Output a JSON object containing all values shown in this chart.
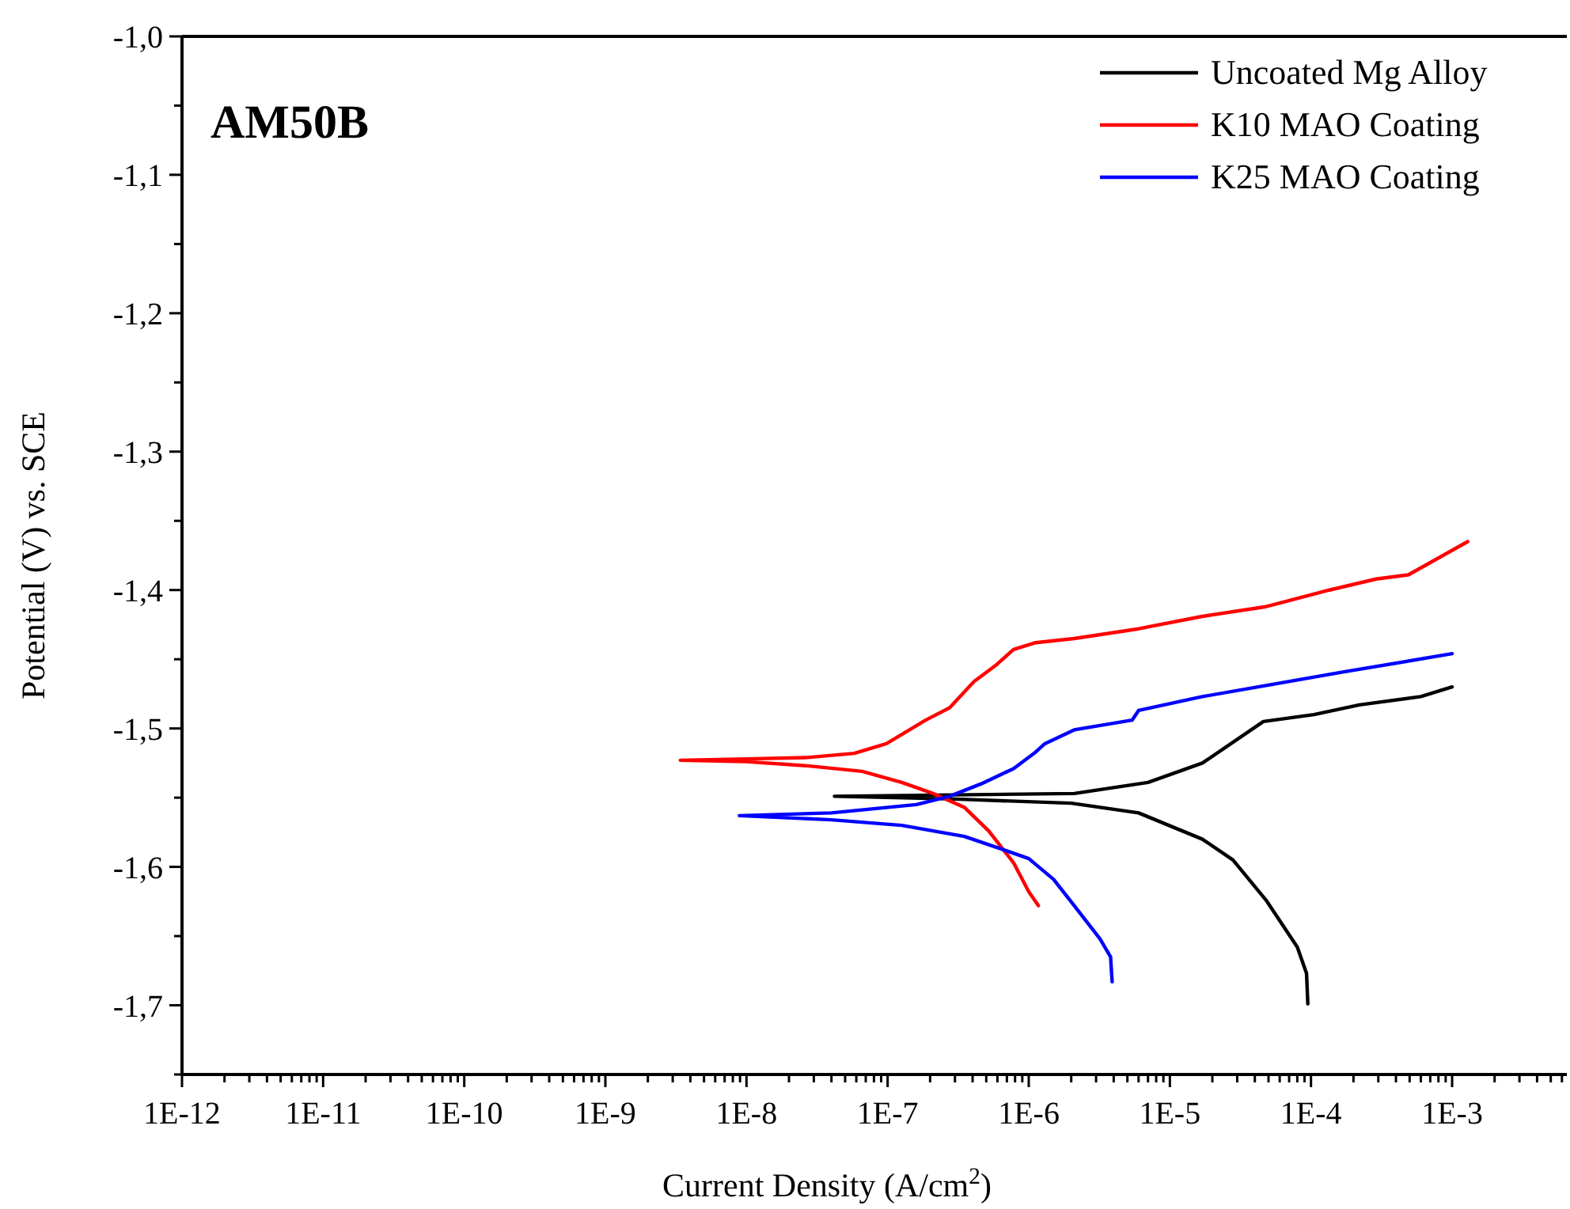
{
  "chart_data": {
    "type": "line",
    "title": "AM50B",
    "xlabel": "Current Density (A/cm$^{2}$)",
    "ylabel": "Potential (V) vs. SCE",
    "log": "x",
    "legend": "top right",
    "grid": false,
    "line_style": "solid",
    "xlim": [
      1e-12,
      0.0065
    ],
    "ylim": [
      -1.75,
      -1.0
    ],
    "xticks": [
      {
        "value": 1e-12,
        "label": "1E-12"
      },
      {
        "value": 2e-12,
        "label": null
      },
      {
        "value": 3e-12,
        "label": null
      },
      {
        "value": 4e-12,
        "label": null
      },
      {
        "value": 5e-12,
        "label": null
      },
      {
        "value": 6e-12,
        "label": null
      },
      {
        "value": 7e-12,
        "label": null
      },
      {
        "value": 8e-12,
        "label": null
      },
      {
        "value": 9e-12,
        "label": null
      },
      {
        "value": 1e-11,
        "label": "1E-11"
      },
      {
        "value": 2e-11,
        "label": null
      },
      {
        "value": 3e-11,
        "label": null
      },
      {
        "value": 4e-11,
        "label": null
      },
      {
        "value": 5e-11,
        "label": null
      },
      {
        "value": 6e-11,
        "label": null
      },
      {
        "value": 7e-11,
        "label": null
      },
      {
        "value": 8e-11,
        "label": null
      },
      {
        "value": 9e-11,
        "label": null
      },
      {
        "value": 1e-10,
        "label": "1E-10"
      },
      {
        "value": 2e-10,
        "label": null
      },
      {
        "value": 3e-10,
        "label": null
      },
      {
        "value": 4e-10,
        "label": null
      },
      {
        "value": 5e-10,
        "label": null
      },
      {
        "value": 6e-10,
        "label": null
      },
      {
        "value": 7e-10,
        "label": null
      },
      {
        "value": 8e-10,
        "label": null
      },
      {
        "value": 9e-10,
        "label": null
      },
      {
        "value": 1e-09,
        "label": "1E-9"
      },
      {
        "value": 2e-09,
        "label": null
      },
      {
        "value": 3e-09,
        "label": null
      },
      {
        "value": 4e-09,
        "label": null
      },
      {
        "value": 5e-09,
        "label": null
      },
      {
        "value": 6e-09,
        "label": null
      },
      {
        "value": 7e-09,
        "label": null
      },
      {
        "value": 8e-09,
        "label": null
      },
      {
        "value": 9e-09,
        "label": null
      },
      {
        "value": 1e-08,
        "label": "1E-8"
      },
      {
        "value": 2e-08,
        "label": null
      },
      {
        "value": 3e-08,
        "label": null
      },
      {
        "value": 4e-08,
        "label": null
      },
      {
        "value": 5e-08,
        "label": null
      },
      {
        "value": 6e-08,
        "label": null
      },
      {
        "value": 7e-08,
        "label": null
      },
      {
        "value": 8e-08,
        "label": null
      },
      {
        "value": 9e-08,
        "label": null
      },
      {
        "value": 1e-07,
        "label": "1E-7"
      },
      {
        "value": 2e-07,
        "label": null
      },
      {
        "value": 3e-07,
        "label": null
      },
      {
        "value": 4e-07,
        "label": null
      },
      {
        "value": 5e-07,
        "label": null
      },
      {
        "value": 6e-07,
        "label": null
      },
      {
        "value": 7e-07,
        "label": null
      },
      {
        "value": 8e-07,
        "label": null
      },
      {
        "value": 9e-07,
        "label": null
      },
      {
        "value": 1e-06,
        "label": "1E-6"
      },
      {
        "value": 2e-06,
        "label": null
      },
      {
        "value": 3e-06,
        "label": null
      },
      {
        "value": 4e-06,
        "label": null
      },
      {
        "value": 5e-06,
        "label": null
      },
      {
        "value": 6e-06,
        "label": null
      },
      {
        "value": 7e-06,
        "label": null
      },
      {
        "value": 8e-06,
        "label": null
      },
      {
        "value": 9e-06,
        "label": null
      },
      {
        "value": 1e-05,
        "label": "1E-5"
      },
      {
        "value": 2e-05,
        "label": null
      },
      {
        "value": 3e-05,
        "label": null
      },
      {
        "value": 4e-05,
        "label": null
      },
      {
        "value": 5e-05,
        "label": null
      },
      {
        "value": 6e-05,
        "label": null
      },
      {
        "value": 7e-05,
        "label": null
      },
      {
        "value": 8e-05,
        "label": null
      },
      {
        "value": 9e-05,
        "label": null
      },
      {
        "value": 0.0001,
        "label": "1E-4"
      },
      {
        "value": 0.0002,
        "label": null
      },
      {
        "value": 0.0003,
        "label": null
      },
      {
        "value": 0.0004,
        "label": null
      },
      {
        "value": 0.0005,
        "label": null
      },
      {
        "value": 0.0006,
        "label": null
      },
      {
        "value": 0.0007,
        "label": null
      },
      {
        "value": 0.0008,
        "label": null
      },
      {
        "value": 0.0009,
        "label": null
      },
      {
        "value": 0.001,
        "label": "1E-3"
      },
      {
        "value": 0.002,
        "label": null
      },
      {
        "value": 0.003,
        "label": null
      },
      {
        "value": 0.004,
        "label": null
      },
      {
        "value": 0.005,
        "label": null
      },
      {
        "value": 0.006,
        "label": null
      }
    ],
    "yticks": [
      {
        "value": -1.0,
        "label": "-1,0"
      },
      {
        "value": -1.05,
        "label": null
      },
      {
        "value": -1.1,
        "label": "-1,1"
      },
      {
        "value": -1.15,
        "label": null
      },
      {
        "value": -1.2,
        "label": "-1,2"
      },
      {
        "value": -1.25,
        "label": null
      },
      {
        "value": -1.3,
        "label": "-1,3"
      },
      {
        "value": -1.35,
        "label": null
      },
      {
        "value": -1.4,
        "label": "-1,4"
      },
      {
        "value": -1.45,
        "label": null
      },
      {
        "value": -1.5,
        "label": "-1,5"
      },
      {
        "value": -1.55,
        "label": null
      },
      {
        "value": -1.6,
        "label": "-1,6"
      },
      {
        "value": -1.65,
        "label": null
      },
      {
        "value": -1.7,
        "label": "-1,7"
      },
      {
        "value": -1.75,
        "label": null
      }
    ],
    "series": [
      {
        "name": "Uncoated Mg Alloy",
        "color": "#000000",
        "x": [
          9.5e-05,
          9.3e-05,
          8e-05,
          4.8e-05,
          2.8e-05,
          1.7e-05,
          6e-06,
          2e-06,
          3e-07,
          4.2e-08,
          3e-07,
          2.1e-06,
          7e-06,
          1.7e-05,
          4.6e-05,
          0.000105,
          0.00022,
          0.0006,
          0.001
        ],
        "values": [
          -1.699,
          -1.677,
          -1.658,
          -1.624,
          -1.595,
          -1.58,
          -1.561,
          -1.554,
          -1.551,
          -1.549,
          -1.548,
          -1.547,
          -1.539,
          -1.525,
          -1.495,
          -1.49,
          -1.483,
          -1.477,
          -1.47
        ]
      },
      {
        "name": "K10 MAO Coating",
        "color": "#ff0000",
        "x": [
          1.17e-06,
          1e-06,
          7.8e-07,
          5.2e-07,
          3.5e-07,
          2.1e-07,
          1.26e-07,
          6.6e-08,
          2.7e-08,
          1e-08,
          3.4e-09,
          1e-08,
          2.7e-08,
          5.8e-08,
          9.8e-08,
          1.86e-07,
          2.75e-07,
          4.1e-07,
          5.9e-07,
          7.8e-07,
          1.12e-06,
          2.1e-06,
          6e-06,
          1.7e-05,
          4.8e-05,
          0.000135,
          0.00029,
          0.00049,
          0.00129
        ],
        "values": [
          -1.628,
          -1.618,
          -1.597,
          -1.574,
          -1.557,
          -1.547,
          -1.539,
          -1.531,
          -1.527,
          -1.524,
          -1.523,
          -1.522,
          -1.521,
          -1.518,
          -1.511,
          -1.494,
          -1.485,
          -1.466,
          -1.454,
          -1.443,
          -1.438,
          -1.435,
          -1.428,
          -1.419,
          -1.412,
          -1.4,
          -1.392,
          -1.389,
          -1.365
        ]
      },
      {
        "name": "K25 MAO Coating",
        "color": "#0000ff",
        "x": [
          3.9e-06,
          3.8e-06,
          3.2e-06,
          2.1e-06,
          1.5e-06,
          1e-06,
          6.8e-07,
          3.5e-07,
          1.26e-07,
          4e-08,
          8.9e-09,
          4e-08,
          1.6e-07,
          2.75e-07,
          4.6e-07,
          7.8e-07,
          1.12e-06,
          1.3e-06,
          2.1e-06,
          5.4e-06,
          6e-06,
          1.7e-05,
          4.8e-05,
          0.000174,
          0.001
        ],
        "values": [
          -1.683,
          -1.665,
          -1.652,
          -1.628,
          -1.609,
          -1.594,
          -1.588,
          -1.578,
          -1.57,
          -1.566,
          -1.563,
          -1.561,
          -1.555,
          -1.549,
          -1.54,
          -1.529,
          -1.517,
          -1.511,
          -1.501,
          -1.494,
          -1.487,
          -1.477,
          -1.469,
          -1.459,
          -1.446
        ]
      }
    ]
  }
}
